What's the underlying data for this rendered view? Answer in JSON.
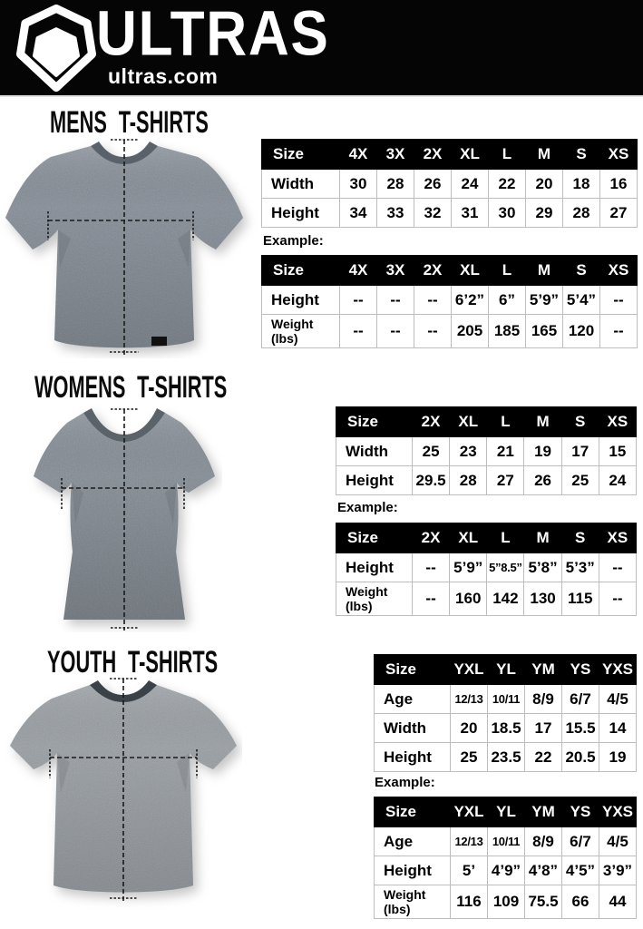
{
  "colors": {
    "header_bg": "#050505",
    "table_header_bg": "#000000",
    "table_header_text": "#ffffff",
    "table_border": "#bdbdbd",
    "shirt_gray": "#8a9199",
    "text": "#000000"
  },
  "header": {
    "brand": "ULTRAS",
    "site": "ultras.com",
    "logo_icon": "pentagon-badge"
  },
  "sections": [
    {
      "id": "mens",
      "title": "MENS T-SHIRTS",
      "example_label": "Example:",
      "size_table": {
        "columns": [
          "Size",
          "4X",
          "3X",
          "2X",
          "XL",
          "L",
          "M",
          "S",
          "XS"
        ],
        "rows": [
          {
            "label": "Width",
            "values": [
              "30",
              "28",
              "26",
              "24",
              "22",
              "20",
              "18",
              "16"
            ]
          },
          {
            "label": "Height",
            "values": [
              "34",
              "33",
              "32",
              "31",
              "30",
              "29",
              "28",
              "27"
            ]
          }
        ]
      },
      "example_table": {
        "columns": [
          "Size",
          "4X",
          "3X",
          "2X",
          "XL",
          "L",
          "M",
          "S",
          "XS"
        ],
        "rows": [
          {
            "label": "Height",
            "values": [
              "--",
              "--",
              "--",
              "6’2”",
              "6”",
              "5’9”",
              "5’4”",
              "--"
            ]
          },
          {
            "label": "Weight\n(lbs)",
            "values": [
              "--",
              "--",
              "--",
              "205",
              "185",
              "165",
              "120",
              "--"
            ]
          }
        ]
      }
    },
    {
      "id": "womens",
      "title": "WOMENS T-SHIRTS",
      "example_label": "Example:",
      "size_table": {
        "columns": [
          "Size",
          "2X",
          "XL",
          "L",
          "M",
          "S",
          "XS"
        ],
        "rows": [
          {
            "label": "Width",
            "values": [
              "25",
              "23",
              "21",
              "19",
              "17",
              "15"
            ]
          },
          {
            "label": "Height",
            "values": [
              "29.5",
              "28",
              "27",
              "26",
              "25",
              "24"
            ]
          }
        ]
      },
      "example_table": {
        "columns": [
          "Size",
          "2X",
          "XL",
          "L",
          "M",
          "S",
          "XS"
        ],
        "rows": [
          {
            "label": "Height",
            "values": [
              "--",
              "5’9”",
              "5”8.5”",
              "5’8”",
              "5’3”",
              "--"
            ]
          },
          {
            "label": "Weight\n(lbs)",
            "values": [
              "--",
              "160",
              "142",
              "130",
              "115",
              "--"
            ]
          }
        ]
      }
    },
    {
      "id": "youth",
      "title": "YOUTH T-SHIRTS",
      "example_label": "Example:",
      "size_table": {
        "columns": [
          "Size",
          "YXL",
          "YL",
          "YM",
          "YS",
          "YXS"
        ],
        "rows": [
          {
            "label": "Age",
            "values": [
              "12/13",
              "10/11",
              "8/9",
              "6/7",
              "4/5"
            ]
          },
          {
            "label": "Width",
            "values": [
              "20",
              "18.5",
              "17",
              "15.5",
              "14"
            ]
          },
          {
            "label": "Height",
            "values": [
              "25",
              "23.5",
              "22",
              "20.5",
              "19"
            ]
          }
        ]
      },
      "example_table": {
        "columns": [
          "Size",
          "YXL",
          "YL",
          "YM",
          "YS",
          "YXS"
        ],
        "rows": [
          {
            "label": "Age",
            "values": [
              "12/13",
              "10/11",
              "8/9",
              "6/7",
              "4/5"
            ]
          },
          {
            "label": "Height",
            "values": [
              "5’",
              "4’9”",
              "4’8”",
              "4’5”",
              "3’9”"
            ]
          },
          {
            "label": "Weight\n(lbs)",
            "values": [
              "116",
              "109",
              "75.5",
              "66",
              "44"
            ]
          }
        ]
      }
    }
  ]
}
